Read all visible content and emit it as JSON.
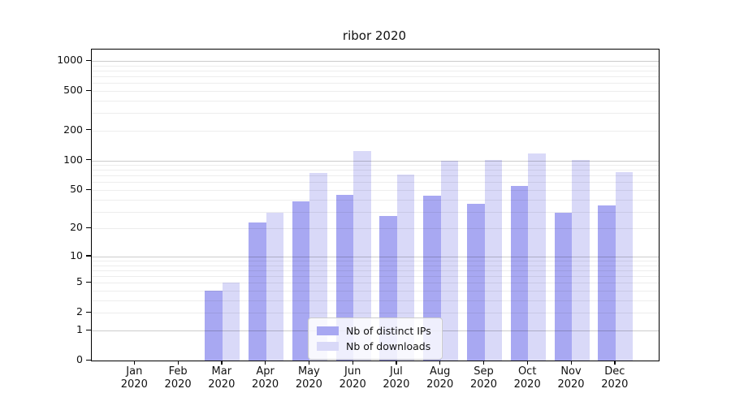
{
  "title": "ribor 2020",
  "colors": {
    "bar_distinct_ips": "#a8a8f2",
    "bar_downloads": "#d9d9f8",
    "grid_major": "#c9c9c9",
    "grid_minor": "#ededed",
    "axis": "#000000",
    "background": "#ffffff",
    "text": "#111111"
  },
  "legend": {
    "items": [
      {
        "label": "Nb of distinct IPs",
        "color": "#a8a8f2"
      },
      {
        "label": "Nb of downloads",
        "color": "#d9d9f8"
      }
    ]
  },
  "chart_data": {
    "type": "bar",
    "title": "ribor 2020",
    "categories": [
      "Jan 2020",
      "Feb 2020",
      "Mar 2020",
      "Apr 2020",
      "May 2020",
      "Jun 2020",
      "Jul 2020",
      "Aug 2020",
      "Sep 2020",
      "Oct 2020",
      "Nov 2020",
      "Dec 2020"
    ],
    "series": [
      {
        "name": "Nb of distinct IPs",
        "color": "#a8a8f2",
        "values": [
          0,
          0,
          4,
          23,
          38,
          45,
          27,
          44,
          36,
          55,
          29,
          35
        ]
      },
      {
        "name": "Nb of downloads",
        "color": "#d9d9f8",
        "values": [
          0,
          0,
          5,
          29,
          75,
          125,
          72,
          100,
          102,
          118,
          101,
          76
        ]
      }
    ],
    "xlabel": "",
    "ylabel": "",
    "yscale": "log1p",
    "ylim": [
      0,
      1300
    ],
    "yticks_labeled": [
      0,
      1,
      2,
      5,
      10,
      20,
      50,
      100,
      200,
      500,
      1000
    ],
    "yticks_minor_grid": [
      2,
      3,
      4,
      5,
      6,
      7,
      8,
      9,
      20,
      30,
      40,
      50,
      60,
      70,
      80,
      90,
      200,
      300,
      400,
      500,
      600,
      700,
      800,
      900
    ],
    "yticks_major_grid": [
      1,
      10,
      100,
      1000
    ],
    "grid": true,
    "legend_position": "bottom-center"
  }
}
